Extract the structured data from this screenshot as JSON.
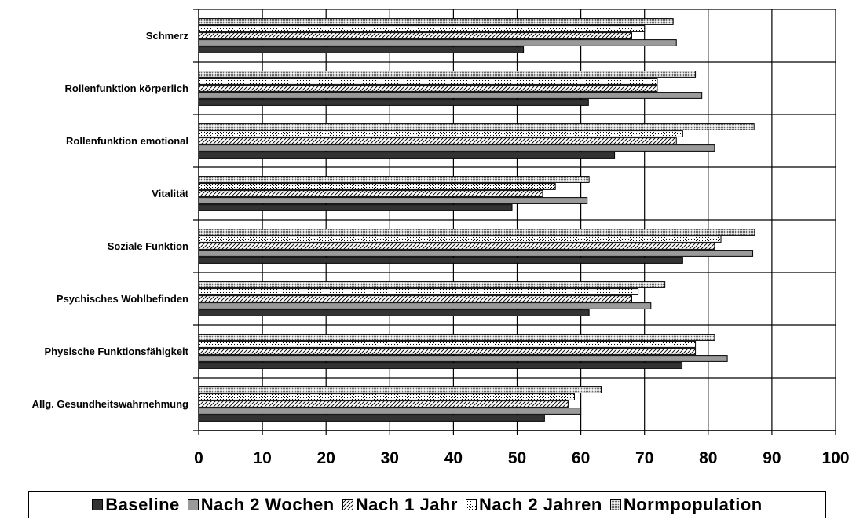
{
  "chart_data": {
    "type": "bar",
    "orientation": "horizontal",
    "title": "",
    "xlabel": "",
    "ylabel": "",
    "xlim": [
      0,
      100
    ],
    "x_ticks": [
      0,
      10,
      20,
      30,
      40,
      50,
      60,
      70,
      80,
      90,
      100
    ],
    "grid": "vertical",
    "legend_position": "bottom",
    "categories": [
      "Schmerz",
      "Rollenfunktion körperlich",
      "Rollenfunktion emotional",
      "Vitalität",
      "Soziale Funktion",
      "Psychisches Wohlbefinden",
      "Physische Funktionsfähigkeit",
      "Allg. Gesundheitswahrnehmung"
    ],
    "series": [
      {
        "name": "Baseline",
        "pattern": "solid-dark",
        "color": "#333333",
        "values": [
          51,
          61.2,
          65.3,
          49.2,
          76,
          61.3,
          75.9,
          54.3
        ]
      },
      {
        "name": "Nach 2 Wochen",
        "pattern": "solid-gray",
        "color": "#999999",
        "values": [
          75,
          79,
          81,
          61,
          87,
          71,
          83,
          60
        ]
      },
      {
        "name": "Nach 1 Jahr",
        "pattern": "diagonal-hatch",
        "color": "#ffffff",
        "values": [
          68,
          72,
          75,
          54,
          81,
          68,
          78,
          58
        ]
      },
      {
        "name": "Nach 2 Jahren",
        "pattern": "fine-dots",
        "color": "#ffffff",
        "values": [
          70,
          72,
          76,
          56,
          82,
          69,
          78,
          59
        ]
      },
      {
        "name": "Normpopulation",
        "pattern": "dense-dots",
        "color": "#d9d9d9",
        "values": [
          74.5,
          78,
          87.2,
          61.3,
          87.3,
          73.2,
          81,
          63.2
        ]
      }
    ]
  }
}
